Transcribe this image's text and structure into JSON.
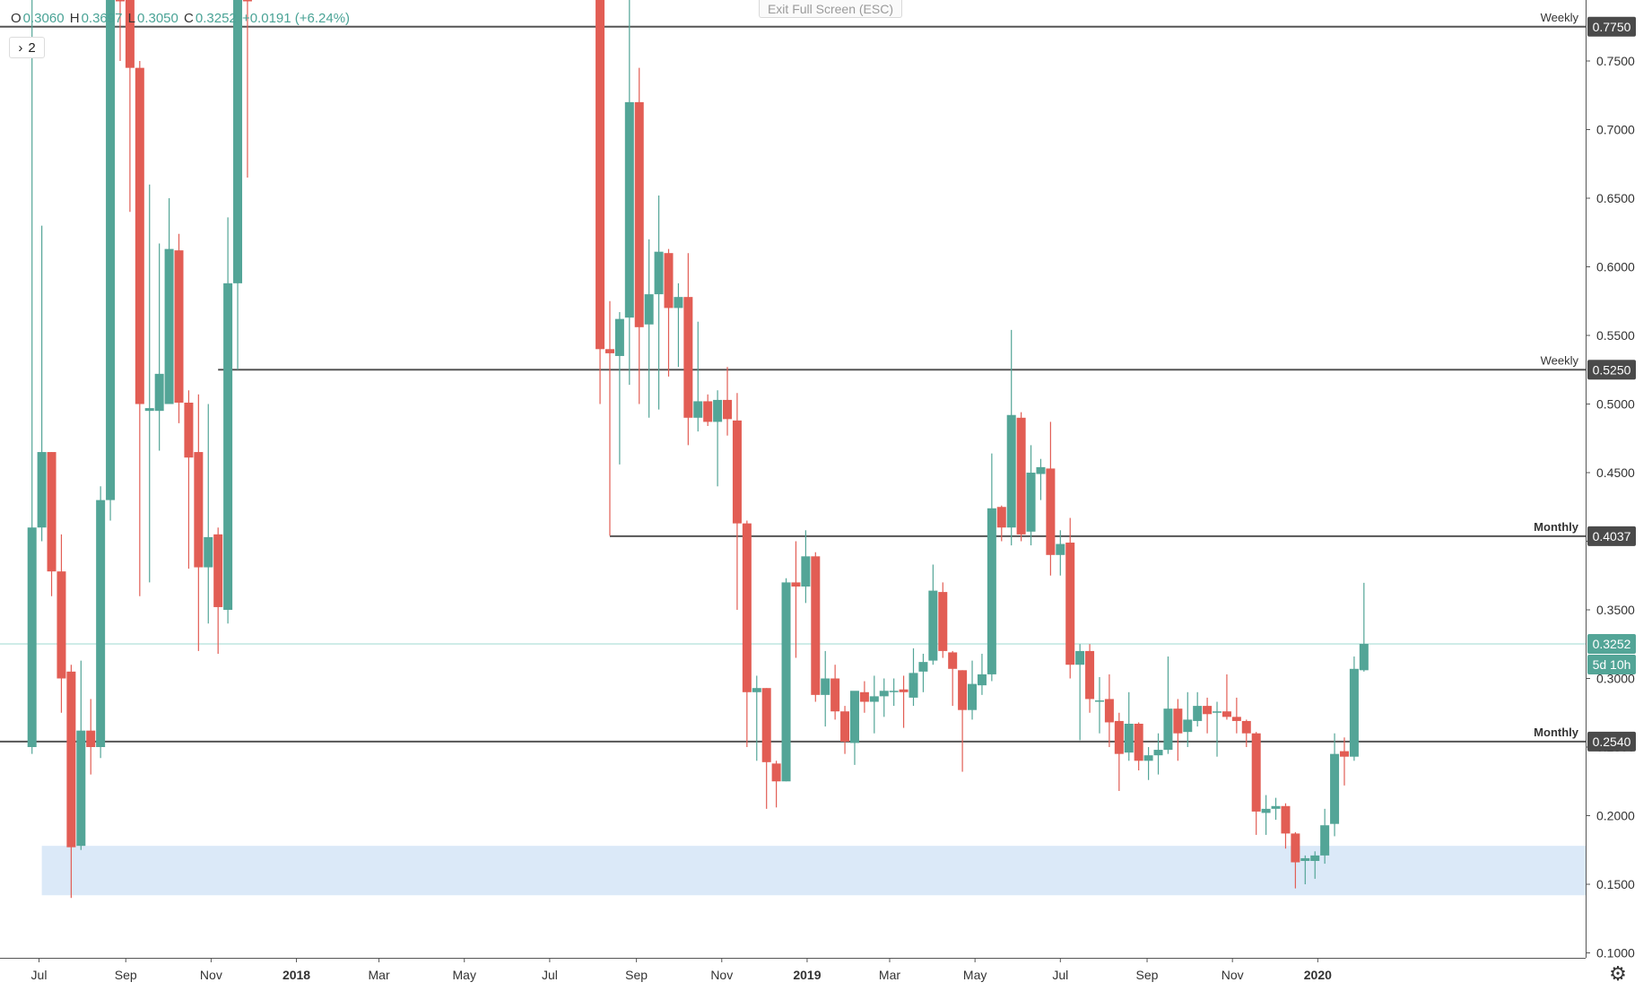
{
  "legend": {
    "open_key": "O",
    "open": "0.3060",
    "high_key": "H",
    "high": "0.3697",
    "low_key": "L",
    "low": "0.3050",
    "close_key": "C",
    "close": "0.3252",
    "change": "+0.0191 (+6.24%)"
  },
  "toolbar": {
    "indicator_toggle_label": "2",
    "exit_fullscreen": "Exit Full Screen (ESC)"
  },
  "colors": {
    "up": "#53a597",
    "down": "#e25d54",
    "level_line": "#555555",
    "zone": "#dbe9f8",
    "price_line": "#9fd8d0"
  },
  "icons": {
    "chevron": "chevron-right-icon",
    "settings": "gear-icon"
  },
  "chart_data": {
    "type": "candlestick",
    "title": "",
    "ylim": [
      0.1,
      0.8
    ],
    "y_ticks": [
      0.1,
      0.15,
      0.2,
      0.25,
      0.3,
      0.35,
      0.4,
      0.45,
      0.5,
      0.55,
      0.6,
      0.65,
      0.7,
      0.75
    ],
    "y_tick_labels": [
      "0.1000",
      "0.1500",
      "0.2000",
      "0.2500",
      "0.3000",
      "0.3500",
      "0.4000",
      "0.4500",
      "0.5000",
      "0.5500",
      "0.6000",
      "0.6500",
      "0.7000",
      "0.7500"
    ],
    "x_ticks": [
      {
        "label": "Jul",
        "date": "2017-07-01",
        "bold": false
      },
      {
        "label": "Sep",
        "date": "2017-09-01",
        "bold": false
      },
      {
        "label": "Nov",
        "date": "2017-11-01",
        "bold": false
      },
      {
        "label": "2018",
        "date": "2018-01-01",
        "bold": true
      },
      {
        "label": "Mar",
        "date": "2018-03-01",
        "bold": false
      },
      {
        "label": "May",
        "date": "2018-05-01",
        "bold": false
      },
      {
        "label": "Jul",
        "date": "2018-07-01",
        "bold": false
      },
      {
        "label": "Sep",
        "date": "2018-09-01",
        "bold": false
      },
      {
        "label": "Nov",
        "date": "2018-11-01",
        "bold": false
      },
      {
        "label": "2019",
        "date": "2019-01-01",
        "bold": true
      },
      {
        "label": "Mar",
        "date": "2019-03-01",
        "bold": false
      },
      {
        "label": "May",
        "date": "2019-05-01",
        "bold": false
      },
      {
        "label": "Jul",
        "date": "2019-07-01",
        "bold": false
      },
      {
        "label": "Sep",
        "date": "2019-09-01",
        "bold": false
      },
      {
        "label": "Nov",
        "date": "2019-11-01",
        "bold": false
      },
      {
        "label": "2020",
        "date": "2020-01-01",
        "bold": true
      }
    ],
    "levels": [
      {
        "label": "Weekly",
        "value": 0.775,
        "value_label": "0.7750",
        "start": "2017-05-29"
      },
      {
        "label": "Weekly",
        "value": 0.525,
        "value_label": "0.5250",
        "start": "2017-11-06"
      },
      {
        "label": "Monthly",
        "value": 0.4037,
        "value_label": "0.4037",
        "start": "2018-08-13"
      },
      {
        "label": "Monthly",
        "value": 0.254,
        "value_label": "0.2540",
        "start": "2017-05-29"
      }
    ],
    "zone": {
      "from": 0.142,
      "to": 0.178,
      "start": "2017-07-03"
    },
    "current_price": {
      "value": 0.3252,
      "label": "0.3252",
      "countdown": "5d 10h"
    },
    "candles": [
      {
        "date": "2017-06-26",
        "o": 0.25,
        "h": 0.85,
        "l": 0.245,
        "c": 0.41
      },
      {
        "date": "2017-07-03",
        "o": 0.41,
        "h": 0.63,
        "l": 0.4,
        "c": 0.465
      },
      {
        "date": "2017-07-10",
        "o": 0.465,
        "h": 0.465,
        "l": 0.36,
        "c": 0.378
      },
      {
        "date": "2017-07-17",
        "o": 0.378,
        "h": 0.405,
        "l": 0.275,
        "c": 0.3
      },
      {
        "date": "2017-07-24",
        "o": 0.305,
        "h": 0.31,
        "l": 0.14,
        "c": 0.177
      },
      {
        "date": "2017-07-31",
        "o": 0.178,
        "h": 0.313,
        "l": 0.175,
        "c": 0.262
      },
      {
        "date": "2017-08-07",
        "o": 0.262,
        "h": 0.285,
        "l": 0.23,
        "c": 0.25
      },
      {
        "date": "2017-08-14",
        "o": 0.25,
        "h": 0.44,
        "l": 0.242,
        "c": 0.43
      },
      {
        "date": "2017-08-21",
        "o": 0.43,
        "h": 0.9,
        "l": 0.415,
        "c": 0.86
      },
      {
        "date": "2017-08-28",
        "o": 0.86,
        "h": 0.93,
        "l": 0.75,
        "c": 0.85
      },
      {
        "date": "2017-09-04",
        "o": 0.85,
        "h": 0.86,
        "l": 0.64,
        "c": 0.745
      },
      {
        "date": "2017-09-11",
        "o": 0.745,
        "h": 0.75,
        "l": 0.36,
        "c": 0.5
      },
      {
        "date": "2017-09-18",
        "o": 0.495,
        "h": 0.66,
        "l": 0.37,
        "c": 0.497
      },
      {
        "date": "2017-09-25",
        "o": 0.495,
        "h": 0.617,
        "l": 0.466,
        "c": 0.522
      },
      {
        "date": "2017-10-02",
        "o": 0.5,
        "h": 0.65,
        "l": 0.503,
        "c": 0.613
      },
      {
        "date": "2017-10-09",
        "o": 0.612,
        "h": 0.624,
        "l": 0.486,
        "c": 0.501
      },
      {
        "date": "2017-10-16",
        "o": 0.501,
        "h": 0.51,
        "l": 0.38,
        "c": 0.461
      },
      {
        "date": "2017-10-23",
        "o": 0.465,
        "h": 0.507,
        "l": 0.32,
        "c": 0.381
      },
      {
        "date": "2017-10-30",
        "o": 0.381,
        "h": 0.5,
        "l": 0.34,
        "c": 0.403
      },
      {
        "date": "2017-11-06",
        "o": 0.405,
        "h": 0.41,
        "l": 0.318,
        "c": 0.352
      },
      {
        "date": "2017-11-13",
        "o": 0.35,
        "h": 0.636,
        "l": 0.34,
        "c": 0.588
      },
      {
        "date": "2017-11-20",
        "o": 0.588,
        "h": 0.85,
        "l": 0.525,
        "c": 0.84
      },
      {
        "date": "2017-11-27",
        "o": 0.84,
        "h": 0.86,
        "l": 0.665,
        "c": 0.8
      },
      {
        "date": "2018-08-06",
        "o": 0.85,
        "h": 0.86,
        "l": 0.5,
        "c": 0.54
      },
      {
        "date": "2018-08-13",
        "o": 0.54,
        "h": 0.575,
        "l": 0.404,
        "c": 0.537
      },
      {
        "date": "2018-08-20",
        "o": 0.535,
        "h": 0.567,
        "l": 0.456,
        "c": 0.562
      },
      {
        "date": "2018-08-27",
        "o": 0.563,
        "h": 0.8,
        "l": 0.514,
        "c": 0.72
      },
      {
        "date": "2018-09-03",
        "o": 0.72,
        "h": 0.745,
        "l": 0.5,
        "c": 0.556
      },
      {
        "date": "2018-09-10",
        "o": 0.558,
        "h": 0.62,
        "l": 0.49,
        "c": 0.58
      },
      {
        "date": "2018-09-17",
        "o": 0.58,
        "h": 0.652,
        "l": 0.496,
        "c": 0.611
      },
      {
        "date": "2018-09-24",
        "o": 0.61,
        "h": 0.613,
        "l": 0.52,
        "c": 0.57
      },
      {
        "date": "2018-10-01",
        "o": 0.57,
        "h": 0.588,
        "l": 0.527,
        "c": 0.578
      },
      {
        "date": "2018-10-08",
        "o": 0.578,
        "h": 0.61,
        "l": 0.47,
        "c": 0.49
      },
      {
        "date": "2018-10-15",
        "o": 0.49,
        "h": 0.56,
        "l": 0.48,
        "c": 0.502
      },
      {
        "date": "2018-10-22",
        "o": 0.502,
        "h": 0.507,
        "l": 0.484,
        "c": 0.487
      },
      {
        "date": "2018-10-29",
        "o": 0.487,
        "h": 0.51,
        "l": 0.44,
        "c": 0.503
      },
      {
        "date": "2018-11-05",
        "o": 0.503,
        "h": 0.527,
        "l": 0.477,
        "c": 0.489
      },
      {
        "date": "2018-11-12",
        "o": 0.488,
        "h": 0.508,
        "l": 0.35,
        "c": 0.413
      },
      {
        "date": "2018-11-19",
        "o": 0.413,
        "h": 0.415,
        "l": 0.25,
        "c": 0.29
      },
      {
        "date": "2018-11-26",
        "o": 0.29,
        "h": 0.302,
        "l": 0.24,
        "c": 0.293
      },
      {
        "date": "2018-12-03",
        "o": 0.293,
        "h": 0.293,
        "l": 0.205,
        "c": 0.239
      },
      {
        "date": "2018-12-10",
        "o": 0.238,
        "h": 0.24,
        "l": 0.206,
        "c": 0.225
      },
      {
        "date": "2018-12-17",
        "o": 0.225,
        "h": 0.373,
        "l": 0.225,
        "c": 0.37
      },
      {
        "date": "2018-12-24",
        "o": 0.37,
        "h": 0.4,
        "l": 0.315,
        "c": 0.367
      },
      {
        "date": "2018-12-31",
        "o": 0.367,
        "h": 0.408,
        "l": 0.355,
        "c": 0.389
      },
      {
        "date": "2019-01-07",
        "o": 0.389,
        "h": 0.392,
        "l": 0.283,
        "c": 0.288
      },
      {
        "date": "2019-01-14",
        "o": 0.288,
        "h": 0.32,
        "l": 0.265,
        "c": 0.3
      },
      {
        "date": "2019-01-21",
        "o": 0.3,
        "h": 0.31,
        "l": 0.27,
        "c": 0.276
      },
      {
        "date": "2019-01-28",
        "o": 0.276,
        "h": 0.28,
        "l": 0.245,
        "c": 0.254
      },
      {
        "date": "2019-02-04",
        "o": 0.253,
        "h": 0.29,
        "l": 0.237,
        "c": 0.291
      },
      {
        "date": "2019-02-11",
        "o": 0.29,
        "h": 0.298,
        "l": 0.275,
        "c": 0.283
      },
      {
        "date": "2019-02-18",
        "o": 0.283,
        "h": 0.302,
        "l": 0.26,
        "c": 0.287
      },
      {
        "date": "2019-02-25",
        "o": 0.287,
        "h": 0.3,
        "l": 0.272,
        "c": 0.291
      },
      {
        "date": "2019-03-04",
        "o": 0.29,
        "h": 0.3,
        "l": 0.28,
        "c": 0.291
      },
      {
        "date": "2019-03-11",
        "o": 0.292,
        "h": 0.302,
        "l": 0.264,
        "c": 0.29
      },
      {
        "date": "2019-03-18",
        "o": 0.286,
        "h": 0.322,
        "l": 0.28,
        "c": 0.304
      },
      {
        "date": "2019-03-25",
        "o": 0.305,
        "h": 0.318,
        "l": 0.29,
        "c": 0.312
      },
      {
        "date": "2019-04-01",
        "o": 0.313,
        "h": 0.383,
        "l": 0.31,
        "c": 0.364
      },
      {
        "date": "2019-04-08",
        "o": 0.363,
        "h": 0.37,
        "l": 0.315,
        "c": 0.32
      },
      {
        "date": "2019-04-15",
        "o": 0.319,
        "h": 0.32,
        "l": 0.28,
        "c": 0.307
      },
      {
        "date": "2019-04-22",
        "o": 0.306,
        "h": 0.306,
        "l": 0.232,
        "c": 0.277
      },
      {
        "date": "2019-04-29",
        "o": 0.277,
        "h": 0.313,
        "l": 0.27,
        "c": 0.296
      },
      {
        "date": "2019-05-06",
        "o": 0.295,
        "h": 0.318,
        "l": 0.288,
        "c": 0.303
      },
      {
        "date": "2019-05-13",
        "o": 0.303,
        "h": 0.464,
        "l": 0.298,
        "c": 0.424
      },
      {
        "date": "2019-05-20",
        "o": 0.425,
        "h": 0.426,
        "l": 0.4,
        "c": 0.41
      },
      {
        "date": "2019-05-27",
        "o": 0.41,
        "h": 0.554,
        "l": 0.397,
        "c": 0.492
      },
      {
        "date": "2019-06-03",
        "o": 0.49,
        "h": 0.494,
        "l": 0.4,
        "c": 0.405
      },
      {
        "date": "2019-06-10",
        "o": 0.407,
        "h": 0.47,
        "l": 0.397,
        "c": 0.45
      },
      {
        "date": "2019-06-17",
        "o": 0.449,
        "h": 0.46,
        "l": 0.43,
        "c": 0.454
      },
      {
        "date": "2019-06-24",
        "o": 0.453,
        "h": 0.487,
        "l": 0.375,
        "c": 0.39
      },
      {
        "date": "2019-07-01",
        "o": 0.39,
        "h": 0.408,
        "l": 0.375,
        "c": 0.398
      },
      {
        "date": "2019-07-08",
        "o": 0.399,
        "h": 0.417,
        "l": 0.3,
        "c": 0.31
      },
      {
        "date": "2019-07-15",
        "o": 0.31,
        "h": 0.325,
        "l": 0.255,
        "c": 0.32
      },
      {
        "date": "2019-07-22",
        "o": 0.32,
        "h": 0.325,
        "l": 0.275,
        "c": 0.285
      },
      {
        "date": "2019-07-29",
        "o": 0.284,
        "h": 0.301,
        "l": 0.26,
        "c": 0.284
      },
      {
        "date": "2019-08-05",
        "o": 0.285,
        "h": 0.303,
        "l": 0.25,
        "c": 0.268
      },
      {
        "date": "2019-08-12",
        "o": 0.269,
        "h": 0.275,
        "l": 0.218,
        "c": 0.245
      },
      {
        "date": "2019-08-19",
        "o": 0.246,
        "h": 0.29,
        "l": 0.24,
        "c": 0.267
      },
      {
        "date": "2019-08-26",
        "o": 0.267,
        "h": 0.268,
        "l": 0.233,
        "c": 0.24
      },
      {
        "date": "2019-09-02",
        "o": 0.24,
        "h": 0.25,
        "l": 0.226,
        "c": 0.244
      },
      {
        "date": "2019-09-09",
        "o": 0.244,
        "h": 0.26,
        "l": 0.23,
        "c": 0.248
      },
      {
        "date": "2019-09-16",
        "o": 0.248,
        "h": 0.316,
        "l": 0.245,
        "c": 0.278
      },
      {
        "date": "2019-09-23",
        "o": 0.278,
        "h": 0.285,
        "l": 0.24,
        "c": 0.26
      },
      {
        "date": "2019-09-30",
        "o": 0.261,
        "h": 0.29,
        "l": 0.25,
        "c": 0.27
      },
      {
        "date": "2019-10-07",
        "o": 0.269,
        "h": 0.29,
        "l": 0.265,
        "c": 0.28
      },
      {
        "date": "2019-10-14",
        "o": 0.28,
        "h": 0.286,
        "l": 0.26,
        "c": 0.274
      },
      {
        "date": "2019-10-21",
        "o": 0.275,
        "h": 0.283,
        "l": 0.243,
        "c": 0.276
      },
      {
        "date": "2019-10-28",
        "o": 0.276,
        "h": 0.303,
        "l": 0.27,
        "c": 0.272
      },
      {
        "date": "2019-11-04",
        "o": 0.272,
        "h": 0.286,
        "l": 0.26,
        "c": 0.269
      },
      {
        "date": "2019-11-11",
        "o": 0.269,
        "h": 0.27,
        "l": 0.25,
        "c": 0.26
      },
      {
        "date": "2019-11-18",
        "o": 0.26,
        "h": 0.261,
        "l": 0.186,
        "c": 0.203
      },
      {
        "date": "2019-11-25",
        "o": 0.202,
        "h": 0.215,
        "l": 0.186,
        "c": 0.205
      },
      {
        "date": "2019-12-02",
        "o": 0.205,
        "h": 0.213,
        "l": 0.197,
        "c": 0.207
      },
      {
        "date": "2019-12-09",
        "o": 0.207,
        "h": 0.209,
        "l": 0.176,
        "c": 0.187
      },
      {
        "date": "2019-12-16",
        "o": 0.187,
        "h": 0.188,
        "l": 0.147,
        "c": 0.166
      },
      {
        "date": "2019-12-23",
        "o": 0.167,
        "h": 0.171,
        "l": 0.15,
        "c": 0.169
      },
      {
        "date": "2019-12-30",
        "o": 0.167,
        "h": 0.174,
        "l": 0.154,
        "c": 0.171
      },
      {
        "date": "2020-01-06",
        "o": 0.171,
        "h": 0.205,
        "l": 0.165,
        "c": 0.193
      },
      {
        "date": "2020-01-13",
        "o": 0.194,
        "h": 0.26,
        "l": 0.185,
        "c": 0.245
      },
      {
        "date": "2020-01-20",
        "o": 0.247,
        "h": 0.257,
        "l": 0.222,
        "c": 0.243
      },
      {
        "date": "2020-01-27",
        "o": 0.243,
        "h": 0.316,
        "l": 0.24,
        "c": 0.307
      },
      {
        "date": "2020-02-03",
        "o": 0.306,
        "h": 0.3697,
        "l": 0.305,
        "c": 0.3252
      }
    ]
  }
}
